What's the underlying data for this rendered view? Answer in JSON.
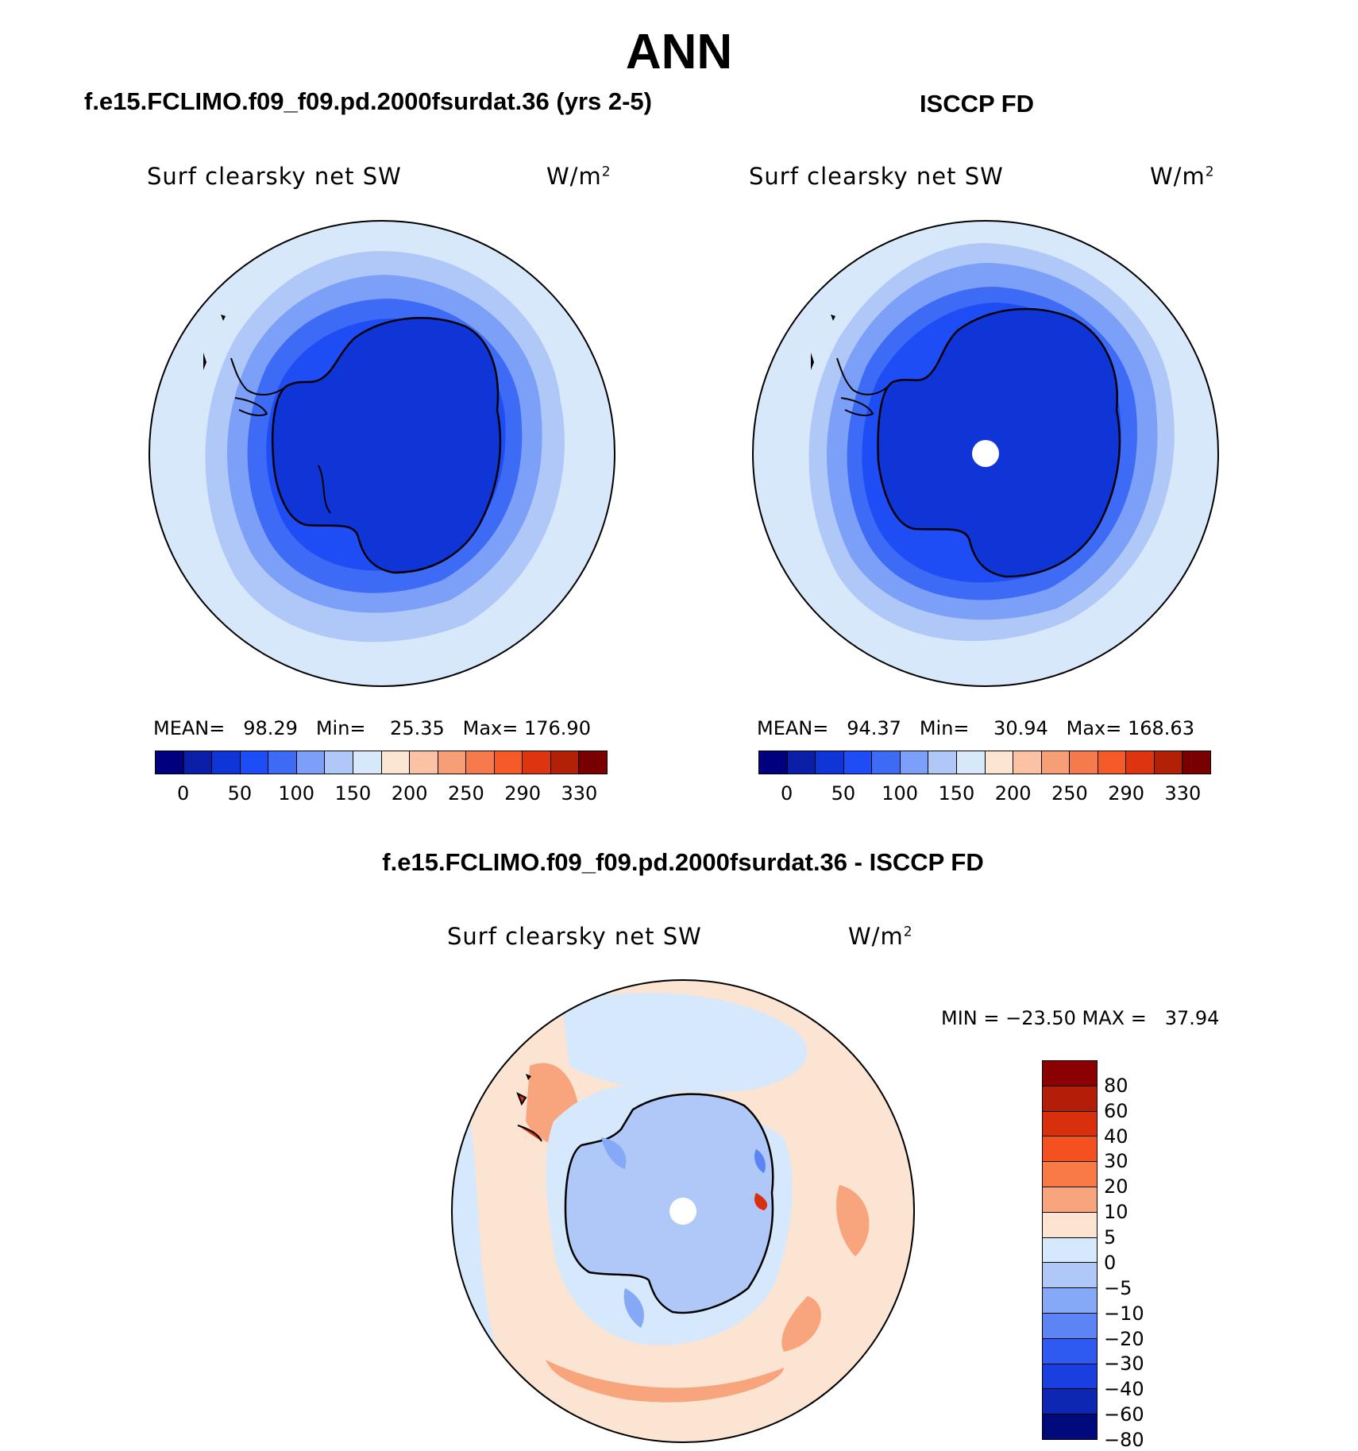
{
  "title": "ANN",
  "panels": [
    {
      "case_title": "f.e15.FCLIMO.f09_f09.pd.2000fsurdat.36 (yrs 2-5)",
      "variable": "Surf clearsky net SW",
      "units": "W/m",
      "units_sup": "2",
      "stats": "MEAN=   98.29   Min=    25.35   Max= 176.90"
    },
    {
      "case_title": "ISCCP FD",
      "variable": "Surf clearsky net SW",
      "units": "W/m",
      "units_sup": "2",
      "stats": "MEAN=   94.37   Min=    30.94   Max= 168.63"
    }
  ],
  "colorbar": {
    "colors": [
      "#00007f",
      "#0a1fa8",
      "#1035d6",
      "#1f4df5",
      "#3d6bf5",
      "#7ca0f7",
      "#b0c8f7",
      "#d8e8fb",
      "#fde5d3",
      "#fbc3a4",
      "#f89e77",
      "#f77a4c",
      "#f55a28",
      "#dd3510",
      "#b32008",
      "#7a0000"
    ],
    "labels": [
      "0",
      "50",
      "100",
      "150",
      "200",
      "250",
      "290",
      "330"
    ]
  },
  "diff_panel": {
    "title": "f.e15.FCLIMO.f09_f09.pd.2000fsurdat.36 - ISCCP FD",
    "variable": "Surf clearsky net SW",
    "units": "W/m",
    "units_sup": "2",
    "stats": "MIN = −23.50 MAX =   37.94",
    "colorbar": {
      "colors_top_to_bottom": [
        "#8b0000",
        "#b31e08",
        "#d8300c",
        "#f5501f",
        "#f97a45",
        "#f8a47d",
        "#fce4d3",
        "#d6e8fb",
        "#b0c8f7",
        "#85a8f7",
        "#5c84f5",
        "#2f5af2",
        "#1a3fe0",
        "#0d27b3",
        "#000a7a"
      ],
      "labels_top_to_bottom": [
        "80",
        "60",
        "40",
        "30",
        "20",
        "10",
        "5",
        "0",
        "−5",
        "−10",
        "−20",
        "−30",
        "−40",
        "−60",
        "−80"
      ]
    }
  }
}
